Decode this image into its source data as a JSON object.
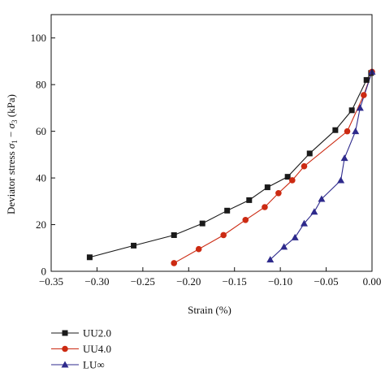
{
  "chart_data": {
    "type": "line",
    "title": "",
    "xlabel": "Strain (%)",
    "ylabel": "Deviator stress σ1 − σ3 (kPa)",
    "ylabel_parts": {
      "prefix": "Deviator stress ",
      "sigma": "σ",
      "sub1": "1",
      "minus": " − ",
      "sub3": "3",
      "suffix": " (kPa)"
    },
    "xlim": [
      -0.35,
      0.0
    ],
    "ylim": [
      0,
      110
    ],
    "xticks": [
      -0.35,
      -0.3,
      -0.25,
      -0.2,
      -0.15,
      -0.1,
      -0.05,
      0.0
    ],
    "xtick_labels": [
      "−0.35",
      "−0.30",
      "−0.25",
      "−0.20",
      "−0.15",
      "−0.10",
      "−0.05",
      "0.00"
    ],
    "yticks": [
      0,
      20,
      40,
      60,
      80,
      100
    ],
    "ytick_labels": [
      "0",
      "20",
      "40",
      "60",
      "80",
      "100"
    ],
    "grid": false,
    "legend_position": "below-left",
    "series": [
      {
        "name": "UU2.0",
        "color": "#1a1a1a",
        "marker": "square",
        "x": [
          -0.308,
          -0.26,
          -0.216,
          -0.185,
          -0.158,
          -0.134,
          -0.114,
          -0.092,
          -0.068,
          -0.04,
          -0.022,
          -0.006,
          -0.001
        ],
        "y": [
          6,
          11,
          15.5,
          20.5,
          26,
          30.5,
          36,
          40.5,
          50.5,
          60.5,
          69,
          82,
          85
        ]
      },
      {
        "name": "UU4.0",
        "color": "#cc2a12",
        "marker": "circle",
        "x": [
          -0.216,
          -0.189,
          -0.162,
          -0.138,
          -0.117,
          -0.102,
          -0.087,
          -0.074,
          -0.027,
          -0.009,
          0.0
        ],
        "y": [
          3.5,
          9.5,
          15.5,
          22,
          27.5,
          33.5,
          39,
          45,
          60,
          75.5,
          85.5
        ]
      },
      {
        "name": "LU∞",
        "color": "#2e2a8c",
        "marker": "triangle",
        "x": [
          -0.111,
          -0.096,
          -0.084,
          -0.074,
          -0.063,
          -0.055,
          -0.034,
          -0.03,
          -0.018,
          -0.013,
          0.0
        ],
        "y": [
          5,
          10.5,
          14.5,
          20.5,
          25.5,
          31,
          39,
          48.5,
          60,
          70,
          85.5
        ]
      }
    ]
  }
}
